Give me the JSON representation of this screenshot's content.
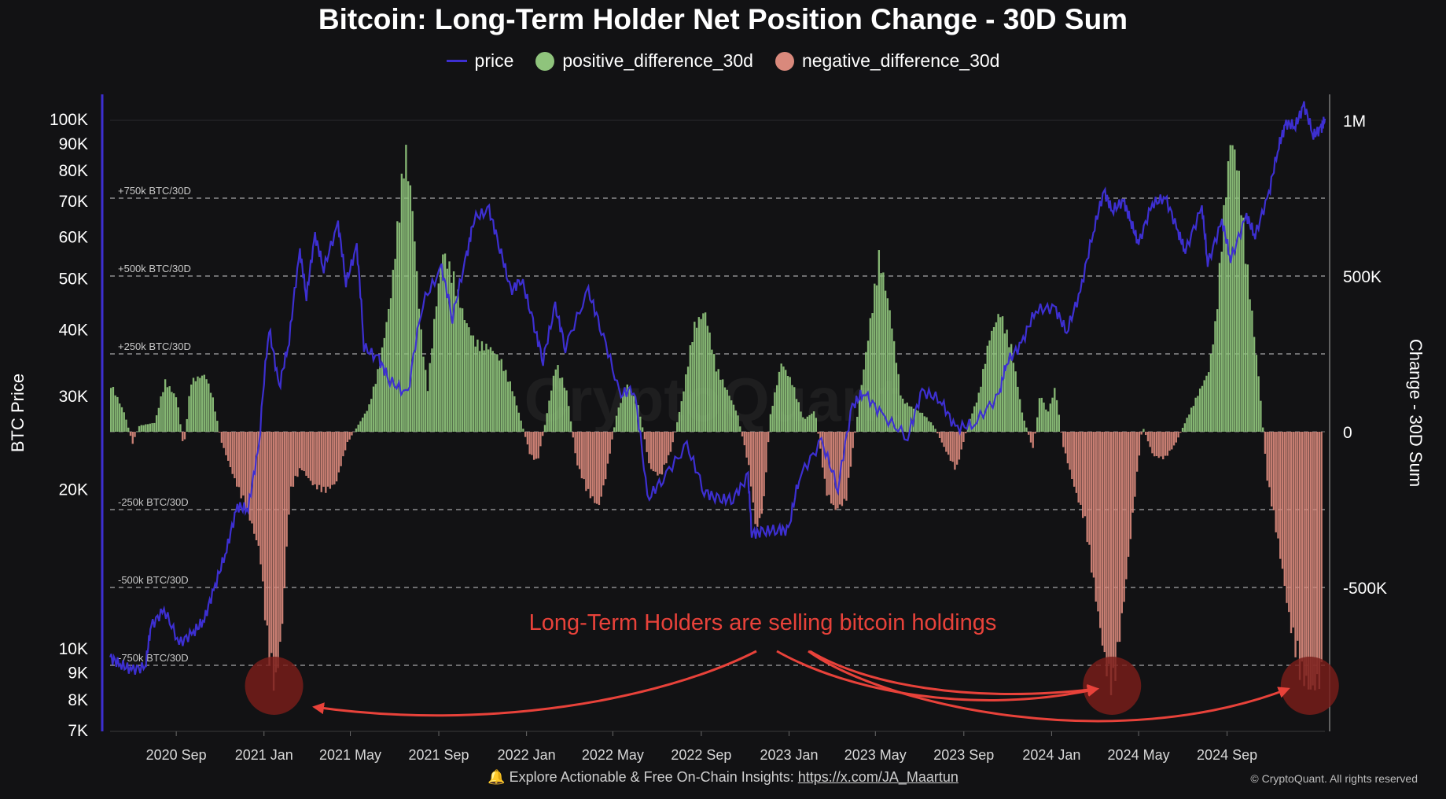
{
  "colors": {
    "background": "#121214",
    "price": "#3d2fd1",
    "positive": "#8fc47c",
    "negative": "#d9897c",
    "annotation": "#e8423a",
    "grid_dash": "#d8d8d8"
  },
  "footer": {
    "bell_icon": "bell-icon",
    "text": "Explore Actionable & Free On-Chain Insights:",
    "link": "https://x.com/JA_Maartun"
  },
  "copyright": "© CryptoQuant. All rights reserved",
  "watermark": "CryptoQuant",
  "chart_data": {
    "type": "bar+line",
    "title": "Bitcoin: Long-Term Holder Net Position Change - 30D Sum",
    "legend": [
      "price",
      "positive_difference_30d",
      "negative_difference_30d"
    ],
    "ylabel_left": "BTC Price",
    "ylabel_right": "Change - 30D Sum",
    "left_axis": {
      "scale": "log",
      "range": [
        7000,
        110000
      ],
      "ticks": [
        {
          "v": 7000,
          "label": "7K"
        },
        {
          "v": 8000,
          "label": "8K"
        },
        {
          "v": 9000,
          "label": "9K"
        },
        {
          "v": 10000,
          "label": "10K"
        },
        {
          "v": 20000,
          "label": "20K"
        },
        {
          "v": 30000,
          "label": "30K"
        },
        {
          "v": 40000,
          "label": "40K"
        },
        {
          "v": 50000,
          "label": "50K"
        },
        {
          "v": 60000,
          "label": "60K"
        },
        {
          "v": 70000,
          "label": "70K"
        },
        {
          "v": 80000,
          "label": "80K"
        },
        {
          "v": 90000,
          "label": "90K"
        },
        {
          "v": 100000,
          "label": "100K"
        }
      ]
    },
    "right_axis": {
      "range": [
        -1000000,
        1000000
      ],
      "ticks": [
        {
          "v": 1000000,
          "label": "1M"
        },
        {
          "v": 500000,
          "label": "500K"
        },
        {
          "v": 0,
          "label": "0"
        },
        {
          "v": -500000,
          "label": "-500K"
        }
      ]
    },
    "x_range": [
      "2020-06-01",
      "2025-01-15"
    ],
    "x_ticks": [
      {
        "date": "2020-09-01",
        "label": "2020 Sep"
      },
      {
        "date": "2021-01-01",
        "label": "2021 Jan"
      },
      {
        "date": "2021-05-01",
        "label": "2021 May"
      },
      {
        "date": "2021-09-01",
        "label": "2021 Sep"
      },
      {
        "date": "2022-01-01",
        "label": "2022 Jan"
      },
      {
        "date": "2022-05-01",
        "label": "2022 May"
      },
      {
        "date": "2022-09-01",
        "label": "2022 Sep"
      },
      {
        "date": "2023-01-01",
        "label": "2023 Jan"
      },
      {
        "date": "2023-05-01",
        "label": "2023 May"
      },
      {
        "date": "2023-09-01",
        "label": "2023 Sep"
      },
      {
        "date": "2024-01-01",
        "label": "2024 Jan"
      },
      {
        "date": "2024-05-01",
        "label": "2024 May"
      },
      {
        "date": "2024-09-01",
        "label": "2024 Sep"
      }
    ],
    "reference_lines": [
      {
        "v": 750000,
        "label": "+750k BTC/30D"
      },
      {
        "v": 500000,
        "label": "+500k BTC/30D"
      },
      {
        "v": 250000,
        "label": "+250k BTC/30D"
      },
      {
        "v": -250000,
        "label": "-250k BTC/30D"
      },
      {
        "v": -500000,
        "label": "-500k BTC/30D"
      },
      {
        "v": -750000,
        "label": "-750k BTC/30D"
      }
    ],
    "net_position_change_30d": [
      [
        "2020-06-01",
        160000
      ],
      [
        "2020-06-20",
        60000
      ],
      [
        "2020-07-01",
        -40000
      ],
      [
        "2020-07-10",
        20000
      ],
      [
        "2020-08-01",
        30000
      ],
      [
        "2020-08-15",
        170000
      ],
      [
        "2020-09-01",
        110000
      ],
      [
        "2020-09-10",
        -60000
      ],
      [
        "2020-09-20",
        170000
      ],
      [
        "2020-10-10",
        190000
      ],
      [
        "2020-10-20",
        120000
      ],
      [
        "2020-11-01",
        -30000
      ],
      [
        "2020-11-20",
        -160000
      ],
      [
        "2020-12-10",
        -280000
      ],
      [
        "2020-12-25",
        -400000
      ],
      [
        "2021-01-05",
        -720000
      ],
      [
        "2021-01-15",
        -860000
      ],
      [
        "2021-01-25",
        -650000
      ],
      [
        "2021-02-05",
        -200000
      ],
      [
        "2021-02-20",
        -120000
      ],
      [
        "2021-03-10",
        -180000
      ],
      [
        "2021-03-25",
        -200000
      ],
      [
        "2021-04-10",
        -170000
      ],
      [
        "2021-04-25",
        -40000
      ],
      [
        "2021-05-10",
        20000
      ],
      [
        "2021-05-25",
        80000
      ],
      [
        "2021-06-10",
        230000
      ],
      [
        "2021-06-25",
        450000
      ],
      [
        "2021-07-05",
        700000
      ],
      [
        "2021-07-15",
        950000
      ],
      [
        "2021-07-25",
        750000
      ],
      [
        "2021-08-05",
        360000
      ],
      [
        "2021-08-15",
        140000
      ],
      [
        "2021-08-25",
        380000
      ],
      [
        "2021-09-05",
        600000
      ],
      [
        "2021-09-20",
        520000
      ],
      [
        "2021-10-05",
        380000
      ],
      [
        "2021-10-20",
        300000
      ],
      [
        "2021-11-10",
        280000
      ],
      [
        "2021-11-25",
        240000
      ],
      [
        "2021-12-10",
        150000
      ],
      [
        "2021-12-25",
        20000
      ],
      [
        "2022-01-05",
        -80000
      ],
      [
        "2022-01-15",
        -100000
      ],
      [
        "2022-01-25",
        20000
      ],
      [
        "2022-02-10",
        230000
      ],
      [
        "2022-02-25",
        130000
      ],
      [
        "2022-03-10",
        -100000
      ],
      [
        "2022-03-25",
        -200000
      ],
      [
        "2022-04-10",
        -250000
      ],
      [
        "2022-04-20",
        -150000
      ],
      [
        "2022-05-05",
        60000
      ],
      [
        "2022-05-20",
        160000
      ],
      [
        "2022-06-05",
        80000
      ],
      [
        "2022-06-20",
        -120000
      ],
      [
        "2022-07-05",
        -150000
      ],
      [
        "2022-07-20",
        -60000
      ],
      [
        "2022-08-05",
        120000
      ],
      [
        "2022-08-20",
        350000
      ],
      [
        "2022-09-05",
        400000
      ],
      [
        "2022-09-20",
        220000
      ],
      [
        "2022-10-05",
        140000
      ],
      [
        "2022-10-20",
        60000
      ],
      [
        "2022-11-05",
        -120000
      ],
      [
        "2022-11-15",
        -330000
      ],
      [
        "2022-11-25",
        -250000
      ],
      [
        "2022-12-05",
        60000
      ],
      [
        "2022-12-20",
        230000
      ],
      [
        "2023-01-05",
        160000
      ],
      [
        "2023-01-20",
        40000
      ],
      [
        "2023-02-05",
        70000
      ],
      [
        "2023-02-20",
        -200000
      ],
      [
        "2023-03-05",
        -260000
      ],
      [
        "2023-03-20",
        -230000
      ],
      [
        "2023-04-05",
        60000
      ],
      [
        "2023-04-20",
        320000
      ],
      [
        "2023-05-05",
        590000
      ],
      [
        "2023-05-20",
        400000
      ],
      [
        "2023-06-05",
        110000
      ],
      [
        "2023-06-20",
        80000
      ],
      [
        "2023-07-05",
        60000
      ],
      [
        "2023-07-20",
        20000
      ],
      [
        "2023-08-05",
        -60000
      ],
      [
        "2023-08-20",
        -130000
      ],
      [
        "2023-09-05",
        20000
      ],
      [
        "2023-09-20",
        120000
      ],
      [
        "2023-10-05",
        310000
      ],
      [
        "2023-10-20",
        400000
      ],
      [
        "2023-11-05",
        280000
      ],
      [
        "2023-11-20",
        60000
      ],
      [
        "2023-12-05",
        -60000
      ],
      [
        "2023-12-15",
        130000
      ],
      [
        "2023-12-25",
        60000
      ],
      [
        "2024-01-05",
        150000
      ],
      [
        "2024-01-15",
        -40000
      ],
      [
        "2024-02-01",
        -190000
      ],
      [
        "2024-02-15",
        -300000
      ],
      [
        "2024-03-01",
        -550000
      ],
      [
        "2024-03-15",
        -780000
      ],
      [
        "2024-03-25",
        -870000
      ],
      [
        "2024-04-10",
        -550000
      ],
      [
        "2024-04-25",
        -200000
      ],
      [
        "2024-05-05",
        20000
      ],
      [
        "2024-05-20",
        -80000
      ],
      [
        "2024-06-05",
        -90000
      ],
      [
        "2024-06-20",
        -40000
      ],
      [
        "2024-07-05",
        40000
      ],
      [
        "2024-07-20",
        120000
      ],
      [
        "2024-08-05",
        200000
      ],
      [
        "2024-08-15",
        370000
      ],
      [
        "2024-08-25",
        700000
      ],
      [
        "2024-09-05",
        980000
      ],
      [
        "2024-09-15",
        880000
      ],
      [
        "2024-09-25",
        620000
      ],
      [
        "2024-10-05",
        380000
      ],
      [
        "2024-10-15",
        150000
      ],
      [
        "2024-10-25",
        -150000
      ],
      [
        "2024-11-05",
        -300000
      ],
      [
        "2024-11-15",
        -450000
      ],
      [
        "2024-11-25",
        -620000
      ],
      [
        "2024-12-10",
        -800000
      ],
      [
        "2024-12-25",
        -860000
      ],
      [
        "2025-01-10",
        -820000
      ]
    ],
    "price": [
      [
        "2020-06-01",
        9600
      ],
      [
        "2020-06-15",
        9300
      ],
      [
        "2020-07-01",
        9100
      ],
      [
        "2020-07-20",
        9200
      ],
      [
        "2020-07-28",
        11000
      ],
      [
        "2020-08-15",
        11800
      ],
      [
        "2020-09-05",
        10200
      ],
      [
        "2020-09-25",
        10700
      ],
      [
        "2020-10-10",
        11300
      ],
      [
        "2020-10-25",
        13100
      ],
      [
        "2020-11-10",
        15300
      ],
      [
        "2020-11-25",
        18500
      ],
      [
        "2020-12-10",
        18300
      ],
      [
        "2020-12-25",
        24000
      ],
      [
        "2021-01-08",
        40000
      ],
      [
        "2021-01-22",
        31000
      ],
      [
        "2021-02-05",
        38000
      ],
      [
        "2021-02-20",
        56000
      ],
      [
        "2021-03-01",
        46000
      ],
      [
        "2021-03-13",
        60000
      ],
      [
        "2021-03-25",
        52000
      ],
      [
        "2021-04-14",
        63000
      ],
      [
        "2021-04-25",
        49000
      ],
      [
        "2021-05-10",
        57000
      ],
      [
        "2021-05-20",
        37000
      ],
      [
        "2021-06-10",
        35000
      ],
      [
        "2021-06-25",
        32000
      ],
      [
        "2021-07-20",
        30000
      ],
      [
        "2021-08-10",
        45000
      ],
      [
        "2021-09-05",
        52000
      ],
      [
        "2021-09-20",
        42000
      ],
      [
        "2021-10-10",
        55000
      ],
      [
        "2021-10-20",
        65000
      ],
      [
        "2021-11-10",
        67000
      ],
      [
        "2021-11-25",
        57000
      ],
      [
        "2021-12-10",
        47000
      ],
      [
        "2021-12-25",
        50000
      ],
      [
        "2022-01-10",
        41000
      ],
      [
        "2022-01-24",
        35000
      ],
      [
        "2022-02-10",
        44000
      ],
      [
        "2022-02-24",
        37000
      ],
      [
        "2022-03-28",
        47000
      ],
      [
        "2022-04-15",
        40000
      ],
      [
        "2022-05-10",
        30000
      ],
      [
        "2022-05-30",
        31000
      ],
      [
        "2022-06-18",
        19000
      ],
      [
        "2022-07-10",
        21000
      ],
      [
        "2022-08-12",
        24000
      ],
      [
        "2022-09-05",
        19800
      ],
      [
        "2022-09-25",
        19000
      ],
      [
        "2022-10-15",
        19200
      ],
      [
        "2022-11-05",
        21000
      ],
      [
        "2022-11-10",
        16500
      ],
      [
        "2022-11-25",
        16500
      ],
      [
        "2022-12-15",
        16800
      ],
      [
        "2022-12-31",
        16600
      ],
      [
        "2023-01-15",
        21000
      ],
      [
        "2023-02-15",
        24500
      ],
      [
        "2023-03-10",
        20000
      ],
      [
        "2023-03-30",
        28500
      ],
      [
        "2023-04-14",
        30500
      ],
      [
        "2023-05-10",
        27500
      ],
      [
        "2023-06-15",
        25000
      ],
      [
        "2023-07-05",
        30500
      ],
      [
        "2023-07-30",
        29500
      ],
      [
        "2023-08-20",
        26000
      ],
      [
        "2023-09-15",
        26500
      ],
      [
        "2023-10-20",
        30000
      ],
      [
        "2023-10-30",
        34500
      ],
      [
        "2023-11-20",
        37500
      ],
      [
        "2023-12-10",
        43500
      ],
      [
        "2024-01-05",
        44000
      ],
      [
        "2024-01-22",
        39500
      ],
      [
        "2024-02-10",
        47000
      ],
      [
        "2024-02-28",
        61000
      ],
      [
        "2024-03-14",
        73000
      ],
      [
        "2024-03-25",
        67000
      ],
      [
        "2024-04-10",
        70000
      ],
      [
        "2024-04-20",
        64000
      ],
      [
        "2024-05-01",
        58000
      ],
      [
        "2024-05-20",
        69000
      ],
      [
        "2024-06-07",
        71000
      ],
      [
        "2024-06-25",
        61000
      ],
      [
        "2024-07-05",
        56000
      ],
      [
        "2024-07-28",
        68000
      ],
      [
        "2024-08-05",
        53000
      ],
      [
        "2024-08-25",
        64000
      ],
      [
        "2024-09-06",
        54000
      ],
      [
        "2024-09-28",
        65500
      ],
      [
        "2024-10-10",
        60000
      ],
      [
        "2024-10-29",
        72000
      ],
      [
        "2024-11-12",
        89000
      ],
      [
        "2024-11-22",
        98000
      ],
      [
        "2024-12-05",
        97000
      ],
      [
        "2024-12-17",
        106000
      ],
      [
        "2024-12-30",
        93000
      ],
      [
        "2025-01-10",
        96000
      ],
      [
        "2025-01-15",
        100000
      ]
    ],
    "annotation_text": "Long-Term Holders are selling bitcoin holdings",
    "highlighted_dates": [
      "2021-01-15",
      "2024-03-25",
      "2024-12-25"
    ]
  }
}
